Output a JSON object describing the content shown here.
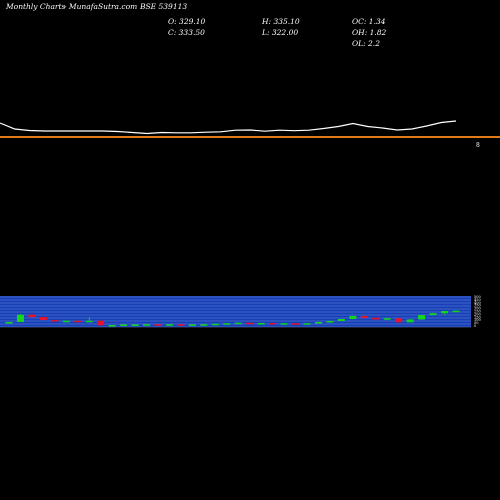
{
  "header": {
    "brand": "Monthly Charts",
    "site": "- MunafaSutra.com",
    "symbol": "BSE 539113",
    "open": "O: 329.10",
    "close": "C: 333.50",
    "high": "H: 335.10",
    "low": "L: 322.00",
    "oc": "OC: 1.34",
    "oh": "OH: 1.82",
    "ol": "OL: 2.2"
  },
  "colors": {
    "background": "#000000",
    "price_line": "#ffffff",
    "separator": "#e07b1a",
    "panel": "#1740b8",
    "grid": "#6d86d6",
    "up": "#14d61f",
    "down": "#e8112d"
  },
  "chart_data": [
    {
      "type": "line",
      "series": [
        {
          "values": [
            8,
            2,
            0.5,
            0,
            0,
            0,
            0,
            0,
            -0.5,
            -1.5,
            -2.5,
            -1.5,
            -1.8,
            -1.8,
            -1.2,
            -0.8,
            0.8,
            1,
            -0.2,
            0.8,
            0.3,
            0.8,
            2.5,
            4.5,
            7.5,
            4.5,
            3,
            1,
            2,
            5,
            8.5,
            10
          ]
        }
      ]
    },
    {
      "type": "bar",
      "ylim": [
        0,
        100
      ],
      "candles": [
        {
          "o": 2,
          "c": 8,
          "h": 8,
          "l": 2
        },
        {
          "o": 8,
          "c": 37,
          "h": 40,
          "l": 8
        },
        {
          "o": 37,
          "c": 28,
          "h": 40,
          "l": 25
        },
        {
          "o": 28,
          "c": 16,
          "h": 28,
          "l": 13
        },
        {
          "o": 16,
          "c": 13,
          "h": 17,
          "l": 11
        },
        {
          "o": 13,
          "c": 13,
          "h": 14,
          "l": 12
        },
        {
          "o": 13,
          "c": 12,
          "h": 13,
          "l": 11
        },
        {
          "o": 12,
          "c": 13,
          "h": 28,
          "l": 11
        },
        {
          "o": 13,
          "c": -5,
          "h": 13,
          "l": -7
        },
        {
          "o": -5,
          "c": -4,
          "h": -4,
          "l": -7
        },
        {
          "o": -4,
          "c": -2,
          "h": -1,
          "l": -5
        },
        {
          "o": -2,
          "c": -2,
          "h": -1,
          "l": -3
        },
        {
          "o": -2,
          "c": -1,
          "h": 0,
          "l": -3
        },
        {
          "o": -1,
          "c": -3,
          "h": -1,
          "l": -4
        },
        {
          "o": -3,
          "c": -1,
          "h": 0,
          "l": -3
        },
        {
          "o": -1,
          "c": -3,
          "h": -1,
          "l": -4
        },
        {
          "o": -3,
          "c": -2,
          "h": -1,
          "l": -3
        },
        {
          "o": -2,
          "c": -1,
          "h": 0,
          "l": -3
        },
        {
          "o": -1,
          "c": 1,
          "h": 2,
          "l": -2
        },
        {
          "o": 1,
          "c": 3,
          "h": 4,
          "l": 0
        },
        {
          "o": 3,
          "c": 5,
          "h": 6,
          "l": 2
        },
        {
          "o": 5,
          "c": 3,
          "h": 5,
          "l": 2
        },
        {
          "o": 3,
          "c": 4,
          "h": 5,
          "l": 2
        },
        {
          "o": 4,
          "c": 2,
          "h": 5,
          "l": 1
        },
        {
          "o": 2,
          "c": 3,
          "h": 4,
          "l": 1
        },
        {
          "o": 3,
          "c": 1,
          "h": 4,
          "l": 0
        },
        {
          "o": 1,
          "c": 3,
          "h": 4,
          "l": 0
        },
        {
          "o": 3,
          "c": 8,
          "h": 9,
          "l": 2
        },
        {
          "o": 8,
          "c": 12,
          "h": 13,
          "l": 7
        },
        {
          "o": 12,
          "c": 20,
          "h": 21,
          "l": 11
        },
        {
          "o": 20,
          "c": 32,
          "h": 33,
          "l": 19
        },
        {
          "o": 32,
          "c": 25,
          "h": 33,
          "l": 23
        },
        {
          "o": 25,
          "c": 18,
          "h": 26,
          "l": 17
        },
        {
          "o": 18,
          "c": 23,
          "h": 24,
          "l": 17
        },
        {
          "o": 23,
          "c": 7,
          "h": 23,
          "l": 6
        },
        {
          "o": 7,
          "c": 18,
          "h": 19,
          "l": 6
        },
        {
          "o": 18,
          "c": 36,
          "h": 37,
          "l": 17
        },
        {
          "o": 36,
          "c": 43,
          "h": 45,
          "l": 35
        },
        {
          "o": 43,
          "c": 52,
          "h": 53,
          "l": 38
        },
        {
          "o": 52,
          "c": 53,
          "h": 55,
          "l": 50
        }
      ]
    }
  ],
  "tick_labels": [
    "500",
    "450",
    "400",
    "350",
    "300",
    "250",
    "200",
    "150",
    "100",
    "50",
    "0"
  ]
}
